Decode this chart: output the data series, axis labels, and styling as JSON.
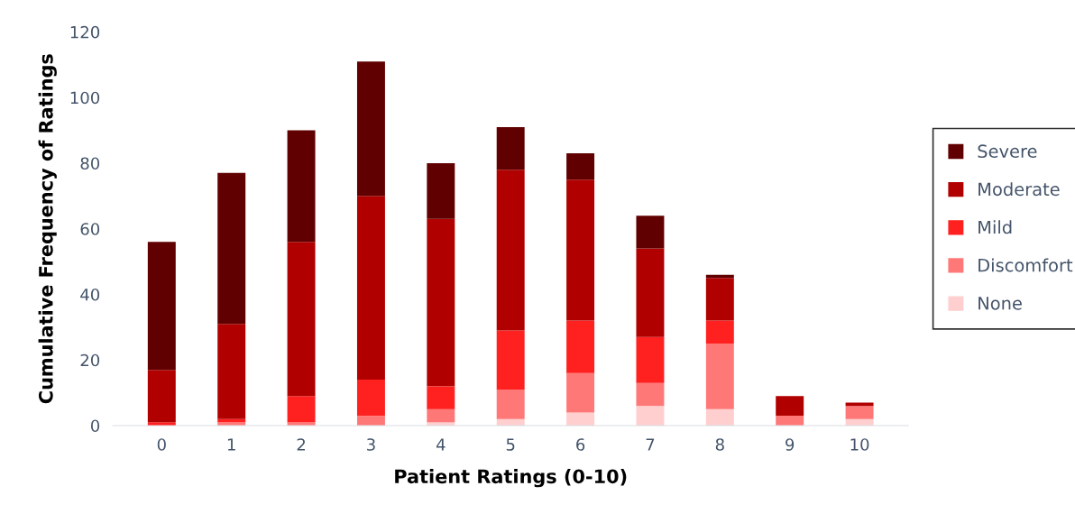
{
  "chart_data": {
    "type": "bar",
    "stacked": true,
    "xlabel": "Patient Ratings (0-10)",
    "ylabel": "Cumulative Frequency of Ratings",
    "categories": [
      "0",
      "1",
      "2",
      "3",
      "4",
      "5",
      "6",
      "7",
      "8",
      "9",
      "10"
    ],
    "series": [
      {
        "name": "None",
        "color": "#ffcfcf",
        "values": [
          0,
          0,
          0,
          0,
          1,
          2,
          4,
          6,
          5,
          0,
          2
        ]
      },
      {
        "name": "Discomfort",
        "color": "#ff7878",
        "values": [
          0,
          1,
          1,
          3,
          4,
          9,
          12,
          7,
          20,
          3,
          4
        ]
      },
      {
        "name": "Mild",
        "color": "#ff2020",
        "values": [
          1,
          1,
          8,
          11,
          7,
          18,
          16,
          14,
          7,
          0,
          0
        ]
      },
      {
        "name": "Moderate",
        "color": "#b00000",
        "values": [
          16,
          29,
          47,
          56,
          51,
          49,
          43,
          27,
          13,
          6,
          1
        ]
      },
      {
        "name": "Severe",
        "color": "#600000",
        "values": [
          39,
          46,
          34,
          41,
          17,
          13,
          8,
          10,
          1,
          0,
          0
        ]
      }
    ],
    "ylim": [
      0,
      120
    ],
    "yticks": [
      0,
      20,
      40,
      60,
      80,
      100,
      120
    ],
    "grid": false,
    "legend": "right"
  }
}
